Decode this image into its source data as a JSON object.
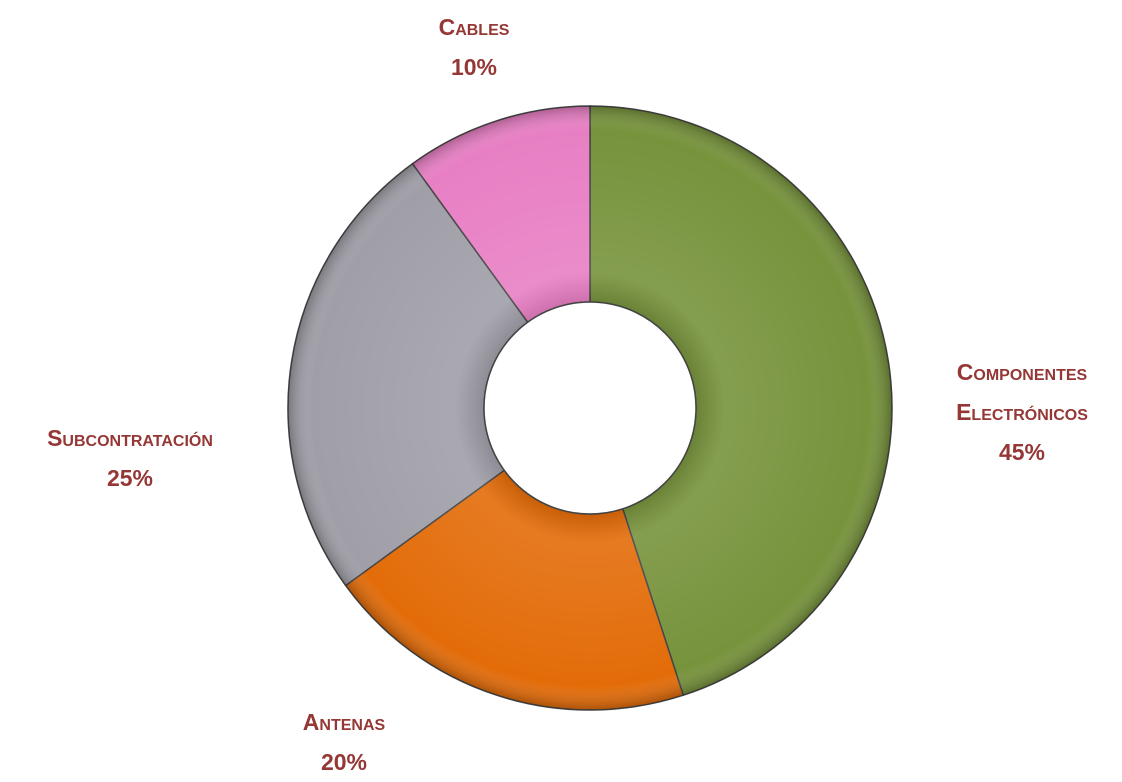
{
  "chart_data": {
    "type": "donut",
    "categories": [
      "Componentes Electrónicos",
      "Antenas",
      "Subcontratación",
      "Cables"
    ],
    "values": [
      45,
      20,
      25,
      10
    ],
    "value_labels": [
      "45%",
      "20%",
      "25%",
      "10%"
    ],
    "colors": [
      "#77933c",
      "#e36c09",
      "#a09fa8",
      "#e87fc4"
    ]
  }
}
